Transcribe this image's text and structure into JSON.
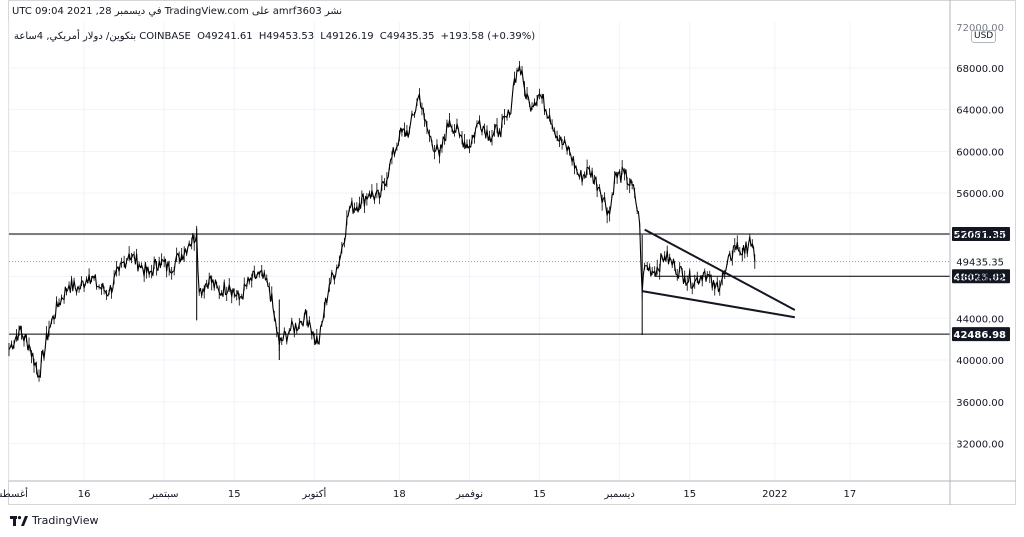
{
  "header": {
    "published_line": "نشر amrf3603 على TradingView.com في ديسمبر 28, 2021 09:04 UTC",
    "symbol_description": "بتكوين/ دولار أمريكي, 4ساعة",
    "exchange": "COINBASE",
    "open": "O49241.61",
    "high": "H49453.53",
    "low": "L49126.19",
    "close": "C49435.35",
    "change": "+193.58 (+0.39%)"
  },
  "price_axis": {
    "currency": "USD",
    "top_label": "72000.00"
  },
  "footer": {
    "brand": "TradingView"
  },
  "colors": {
    "candle": "#000000",
    "grid": "#f0f3fa",
    "level_line": "#000000",
    "current_price": "#9598a1"
  },
  "chart_data": {
    "type": "line",
    "title": "",
    "symbol": "BTC/USD",
    "interval": "4h",
    "ylim": [
      28500,
      72400
    ],
    "grid": true,
    "y_ticks": [
      32000,
      36000,
      40000,
      44000,
      48000,
      52000,
      56000,
      60000,
      64000,
      68000
    ],
    "y_tick_labels": [
      "32000.00",
      "36000.00",
      "40000.00",
      "44000.00",
      "48000.00",
      "52000.00",
      "56000.00",
      "60000.00",
      "64000.00",
      "68000.00"
    ],
    "x_range": [
      0,
      188
    ],
    "x_ticks": [
      {
        "x": 0,
        "label": "أغسطس"
      },
      {
        "x": 15,
        "label": "16"
      },
      {
        "x": 31,
        "label": "سبتمبر"
      },
      {
        "x": 45,
        "label": "15"
      },
      {
        "x": 61,
        "label": "أكتوبر"
      },
      {
        "x": 78,
        "label": "18"
      },
      {
        "x": 92,
        "label": "نوفمبر"
      },
      {
        "x": 106,
        "label": "15"
      },
      {
        "x": 122,
        "label": "ديسمبر"
      },
      {
        "x": 136,
        "label": "15"
      },
      {
        "x": 153,
        "label": "2022"
      },
      {
        "x": 168,
        "label": "17"
      }
    ],
    "price_series": [
      [
        0,
        41000
      ],
      [
        2,
        42800
      ],
      [
        4,
        41500
      ],
      [
        6,
        38500
      ],
      [
        8,
        43000
      ],
      [
        10,
        45500
      ],
      [
        12,
        47200
      ],
      [
        14,
        46800
      ],
      [
        16,
        48200
      ],
      [
        18,
        47000
      ],
      [
        20,
        46500
      ],
      [
        22,
        48500
      ],
      [
        24,
        50200
      ],
      [
        26,
        49200
      ],
      [
        28,
        48200
      ],
      [
        30,
        49500
      ],
      [
        32,
        48800
      ],
      [
        34,
        49800
      ],
      [
        36,
        51200
      ],
      [
        37.5,
        52100
      ],
      [
        38,
        46500
      ],
      [
        40,
        47800
      ],
      [
        42,
        46500
      ],
      [
        44,
        47200
      ],
      [
        46,
        45800
      ],
      [
        48,
        47500
      ],
      [
        50,
        48200
      ],
      [
        52,
        47000
      ],
      [
        53,
        44200
      ],
      [
        54,
        41500
      ],
      [
        56,
        42800
      ],
      [
        58,
        43500
      ],
      [
        59,
        44200
      ],
      [
        60,
        43800
      ],
      [
        61,
        42000
      ],
      [
        62,
        41800
      ],
      [
        63,
        44800
      ],
      [
        64,
        47200
      ],
      [
        66,
        49500
      ],
      [
        68,
        54500
      ],
      [
        70,
        55000
      ],
      [
        72,
        56000
      ],
      [
        74,
        55500
      ],
      [
        76,
        58500
      ],
      [
        78,
        61500
      ],
      [
        80,
        62000
      ],
      [
        82,
        65500
      ],
      [
        83,
        63000
      ],
      [
        84,
        61500
      ],
      [
        86,
        59500
      ],
      [
        88,
        63000
      ],
      [
        90,
        61500
      ],
      [
        92,
        60500
      ],
      [
        94,
        63000
      ],
      [
        96,
        61500
      ],
      [
        98,
        62000
      ],
      [
        100,
        63500
      ],
      [
        101,
        67000
      ],
      [
        102,
        68200
      ],
      [
        103,
        66000
      ],
      [
        104,
        64500
      ],
      [
        106,
        65500
      ],
      [
        108,
        63500
      ],
      [
        110,
        61000
      ],
      [
        112,
        60000
      ],
      [
        114,
        57500
      ],
      [
        116,
        58200
      ],
      [
        118,
        56500
      ],
      [
        120,
        54000
      ],
      [
        121,
        57500
      ],
      [
        123,
        57800
      ],
      [
        125,
        56000
      ],
      [
        126,
        53000
      ],
      [
        126.5,
        46500
      ],
      [
        127,
        49000
      ],
      [
        129,
        48500
      ],
      [
        131,
        50000
      ],
      [
        133,
        49000
      ],
      [
        135,
        48000
      ],
      [
        137,
        47500
      ],
      [
        139,
        48500
      ],
      [
        141,
        46800
      ],
      [
        143,
        48200
      ],
      [
        145,
        51000
      ],
      [
        147,
        50200
      ],
      [
        148,
        51800
      ],
      [
        149,
        49435
      ]
    ],
    "current_price": 49435.35,
    "current_price_label": "49435.35",
    "countdown_label": "02:55:57",
    "horizontal_levels": [
      {
        "value": 52081.35,
        "label": "52081.35"
      },
      {
        "value": 48025.82,
        "label": "48025.82"
      },
      {
        "value": 42486.98,
        "label": "42486.98"
      }
    ],
    "trendlines": [
      {
        "name": "upper-wedge-line",
        "from": [
          127,
          52500
        ],
        "to": [
          157,
          44800
        ]
      },
      {
        "name": "lower-wedge-line",
        "from": [
          126.5,
          46600
        ],
        "to": [
          157,
          44100
        ]
      }
    ]
  }
}
